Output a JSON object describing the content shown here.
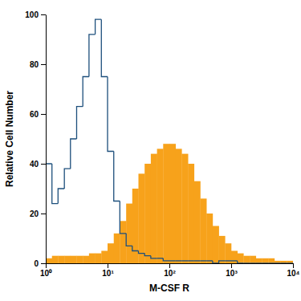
{
  "chart_data": {
    "type": "histogram",
    "x_label": "M-CSF R",
    "y_label": "Relative Cell Number",
    "bins": [
      1,
      1.26,
      1.58,
      2,
      2.51,
      3.16,
      3.98,
      5.01,
      6.31,
      7.94,
      10,
      12.6,
      15.8,
      20,
      25.1,
      31.6,
      39.8,
      50.1,
      63.1,
      79.4,
      100,
      126,
      158,
      200,
      251,
      316,
      398,
      501,
      631,
      794,
      1000,
      1260,
      1580,
      2000,
      2510,
      3160,
      3980,
      5010,
      6310,
      7940,
      10000
    ],
    "series": [
      {
        "type": "step",
        "color": "#1d4f7c",
        "values": [
          40,
          24,
          30,
          38,
          50,
          63,
          75,
          92,
          98,
          75,
          45,
          25,
          12,
          7,
          5,
          4,
          3,
          2,
          2,
          1,
          1,
          1,
          1,
          1,
          1,
          1,
          1,
          0,
          1,
          1,
          1,
          0,
          0,
          0,
          0,
          0,
          0,
          0,
          0,
          0
        ]
      },
      {
        "type": "histogram",
        "color": "#f7a21b",
        "values": [
          2,
          3,
          3,
          3,
          3,
          3,
          3,
          4,
          4,
          5,
          8,
          12,
          17,
          24,
          30,
          36,
          40,
          44,
          46,
          48,
          48,
          46,
          44,
          40,
          33,
          26,
          20,
          15,
          11,
          8,
          5,
          4,
          3,
          3,
          2,
          2,
          2,
          1,
          1,
          1
        ]
      }
    ],
    "log": "x",
    "xlim": [
      1,
      10000
    ],
    "xticks": [
      {
        "value": 1,
        "label": "10⁰"
      },
      {
        "value": 10,
        "label": "10¹"
      },
      {
        "value": 100,
        "label": "10²"
      },
      {
        "value": 1000,
        "label": "10³"
      },
      {
        "value": 10000,
        "label": "10⁴"
      }
    ],
    "ylim": [
      0,
      100
    ],
    "yticks": [
      0,
      20,
      40,
      60,
      80,
      100
    ]
  }
}
